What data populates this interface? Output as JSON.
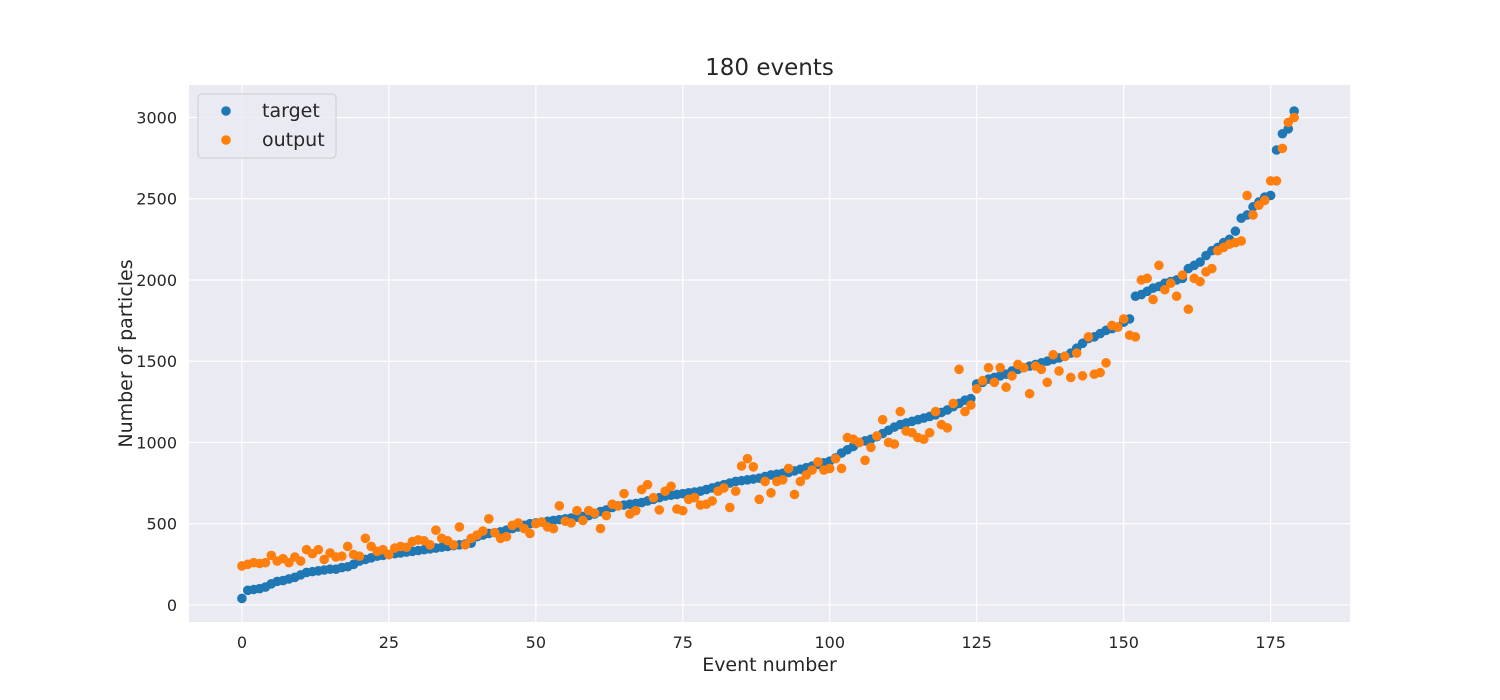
{
  "chart_data": {
    "type": "scatter",
    "title": "180 events",
    "xlabel": "Event number",
    "ylabel": "Number of particles",
    "xlim": [
      -9,
      188.5
    ],
    "ylim": [
      -105,
      3200
    ],
    "xticks": [
      0,
      25,
      50,
      75,
      100,
      125,
      150,
      175
    ],
    "yticks": [
      0,
      500,
      1000,
      1500,
      2000,
      2500,
      3000
    ],
    "grid": true,
    "legend_position": "top-left",
    "background": "#eaeaf2",
    "series": [
      {
        "name": "target",
        "color": "#1f77b4",
        "x_start": 0,
        "values": [
          40,
          90,
          95,
          100,
          110,
          130,
          145,
          150,
          160,
          170,
          185,
          200,
          205,
          210,
          215,
          220,
          220,
          230,
          235,
          250,
          270,
          280,
          290,
          300,
          305,
          310,
          315,
          320,
          325,
          330,
          335,
          340,
          345,
          350,
          355,
          360,
          365,
          370,
          375,
          380,
          420,
          430,
          440,
          445,
          450,
          460,
          470,
          480,
          490,
          500,
          505,
          510,
          515,
          520,
          525,
          530,
          535,
          540,
          545,
          550,
          560,
          575,
          585,
          600,
          610,
          615,
          620,
          625,
          630,
          640,
          650,
          660,
          670,
          675,
          680,
          685,
          690,
          695,
          700,
          710,
          720,
          730,
          740,
          750,
          760,
          765,
          770,
          775,
          780,
          790,
          800,
          805,
          810,
          815,
          825,
          835,
          845,
          855,
          865,
          875,
          885,
          905,
          935,
          955,
          975,
          1000,
          1010,
          1020,
          1035,
          1055,
          1075,
          1095,
          1110,
          1120,
          1130,
          1140,
          1150,
          1160,
          1170,
          1185,
          1200,
          1220,
          1240,
          1260,
          1270,
          1360,
          1370,
          1390,
          1400,
          1410,
          1420,
          1440,
          1450,
          1460,
          1470,
          1480,
          1490,
          1500,
          1510,
          1520,
          1530,
          1550,
          1580,
          1610,
          1640,
          1650,
          1670,
          1690,
          1700,
          1710,
          1740,
          1760,
          1900,
          1910,
          1930,
          1950,
          1960,
          1980,
          1990,
          2000,
          2010,
          2070,
          2090,
          2110,
          2150,
          2180,
          2200,
          2230,
          2250,
          2300,
          2380,
          2400,
          2450,
          2480,
          2510,
          2520,
          2800,
          2900,
          2930,
          3040
        ]
      },
      {
        "name": "output",
        "color": "#ff7f0e",
        "x_start": 0,
        "values": [
          240,
          250,
          260,
          255,
          260,
          305,
          270,
          285,
          260,
          295,
          270,
          340,
          315,
          340,
          280,
          320,
          295,
          300,
          360,
          310,
          300,
          410,
          360,
          330,
          340,
          310,
          350,
          360,
          355,
          390,
          400,
          395,
          370,
          460,
          410,
          395,
          370,
          480,
          370,
          410,
          430,
          455,
          530,
          445,
          410,
          420,
          490,
          505,
          470,
          440,
          500,
          510,
          480,
          470,
          610,
          515,
          505,
          580,
          520,
          580,
          565,
          470,
          550,
          620,
          610,
          685,
          560,
          580,
          710,
          740,
          660,
          585,
          700,
          730,
          590,
          580,
          650,
          660,
          615,
          620,
          640,
          700,
          720,
          600,
          700,
          855,
          900,
          850,
          650,
          760,
          690,
          760,
          770,
          840,
          680,
          760,
          800,
          830,
          880,
          830,
          840,
          900,
          840,
          1030,
          1020,
          1000,
          890,
          970,
          1040,
          1140,
          1000,
          990,
          1190,
          1070,
          1060,
          1030,
          1020,
          1060,
          1190,
          1110,
          1090,
          1240,
          1450,
          1190,
          1230,
          1330,
          1380,
          1460,
          1370,
          1460,
          1340,
          1410,
          1480,
          1460,
          1300,
          1470,
          1450,
          1370,
          1540,
          1440,
          1530,
          1400,
          1550,
          1410,
          1650,
          1420,
          1430,
          1490,
          1720,
          1710,
          1760,
          1660,
          1650,
          2000,
          2010,
          1880,
          2090,
          1940,
          1980,
          1900,
          2030,
          1820,
          2010,
          1990,
          2050,
          2070,
          2180,
          2200,
          2220,
          2230,
          2240,
          2520,
          2400,
          2460,
          2490,
          2610,
          2610,
          2810,
          2970,
          3000
        ]
      }
    ]
  }
}
